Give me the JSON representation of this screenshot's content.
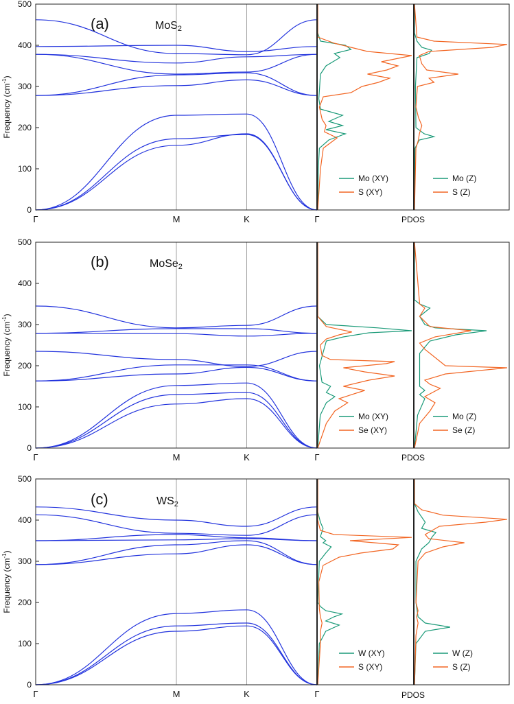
{
  "colors": {
    "band": "#2233dd",
    "metal": "#1a9a78",
    "chalcogen": "#f26522",
    "frame": "#222222",
    "high_symmetry_line": "#888888"
  },
  "common": {
    "ylabel": "Frequency (cm",
    "ylabel_sup": "-1",
    "ylabel_tail": ")",
    "kpoints": [
      "Γ",
      "M",
      "K",
      "Γ"
    ],
    "pdos_label": "PDOS",
    "yticks": [
      0,
      100,
      200,
      300,
      400,
      500
    ]
  },
  "chart_data": [
    {
      "type": "line",
      "panel": "(a)",
      "material": {
        "base": "MoS",
        "sub": "2"
      },
      "ylim": [
        0,
        500
      ],
      "path_coords": [
        0,
        0.5,
        0.75,
        1.0
      ],
      "band_key_values": {
        "acoustic": [
          [
            0,
            173,
            183,
            0
          ],
          [
            0,
            157,
            185,
            0
          ],
          [
            0,
            230,
            233,
            0
          ]
        ],
        "optical": [
          [
            278,
            302,
            316,
            278
          ],
          [
            278,
            328,
            333,
            278
          ],
          [
            378,
            330,
            335,
            378
          ],
          [
            378,
            357,
            372,
            378
          ],
          [
            397,
            400,
            385,
            397
          ],
          [
            462,
            380,
            377,
            462
          ]
        ]
      },
      "legend_left": [
        "Mo (XY)",
        "S (XY)"
      ],
      "legend_right": [
        "Mo (Z)",
        "S (Z)"
      ],
      "pdos_xy": {
        "metal": [
          [
            0,
            0
          ],
          [
            100,
            1
          ],
          [
            150,
            3
          ],
          [
            170,
            20
          ],
          [
            185,
            50
          ],
          [
            195,
            15
          ],
          [
            205,
            45
          ],
          [
            215,
            20
          ],
          [
            230,
            45
          ],
          [
            245,
            5
          ],
          [
            270,
            2
          ],
          [
            330,
            5
          ],
          [
            350,
            15
          ],
          [
            370,
            40
          ],
          [
            380,
            30
          ],
          [
            390,
            60
          ],
          [
            400,
            50
          ],
          [
            410,
            5
          ],
          [
            430,
            0
          ],
          [
            500,
            0
          ]
        ],
        "chalcogen": [
          [
            0,
            0
          ],
          [
            100,
            5
          ],
          [
            150,
            10
          ],
          [
            165,
            25
          ],
          [
            175,
            35
          ],
          [
            190,
            12
          ],
          [
            205,
            15
          ],
          [
            220,
            8
          ],
          [
            250,
            3
          ],
          [
            275,
            10
          ],
          [
            285,
            60
          ],
          [
            300,
            80
          ],
          [
            310,
            110
          ],
          [
            320,
            130
          ],
          [
            330,
            90
          ],
          [
            340,
            125
          ],
          [
            350,
            145
          ],
          [
            360,
            115
          ],
          [
            375,
            170
          ],
          [
            385,
            90
          ],
          [
            395,
            60
          ],
          [
            405,
            30
          ],
          [
            420,
            0
          ],
          [
            500,
            0
          ]
        ]
      },
      "pdos_z": {
        "metal": [
          [
            0,
            0
          ],
          [
            150,
            1
          ],
          [
            170,
            10
          ],
          [
            178,
            40
          ],
          [
            185,
            20
          ],
          [
            200,
            3
          ],
          [
            300,
            2
          ],
          [
            370,
            5
          ],
          [
            380,
            30
          ],
          [
            388,
            35
          ],
          [
            395,
            15
          ],
          [
            410,
            5
          ],
          [
            430,
            0
          ],
          [
            500,
            0
          ]
        ],
        "chalcogen": [
          [
            0,
            0
          ],
          [
            150,
            3
          ],
          [
            170,
            8
          ],
          [
            185,
            10
          ],
          [
            205,
            15
          ],
          [
            225,
            8
          ],
          [
            250,
            3
          ],
          [
            300,
            6
          ],
          [
            310,
            40
          ],
          [
            320,
            30
          ],
          [
            330,
            90
          ],
          [
            340,
            25
          ],
          [
            355,
            15
          ],
          [
            375,
            10
          ],
          [
            385,
            30
          ],
          [
            395,
            160
          ],
          [
            402,
            190
          ],
          [
            410,
            40
          ],
          [
            420,
            5
          ],
          [
            500,
            0
          ]
        ]
      }
    },
    {
      "type": "line",
      "panel": "(b)",
      "material": {
        "base": "MoSe",
        "sub": "2"
      },
      "ylim": [
        0,
        500
      ],
      "path_coords": [
        0,
        0.5,
        0.75,
        1.0
      ],
      "band_key_values": {
        "acoustic": [
          [
            0,
            107,
            120,
            0
          ],
          [
            0,
            130,
            135,
            0
          ],
          [
            0,
            152,
            158,
            0
          ]
        ],
        "optical": [
          [
            163,
            180,
            196,
            163
          ],
          [
            163,
            202,
            202,
            163
          ],
          [
            235,
            215,
            198,
            235
          ],
          [
            279,
            278,
            272,
            279
          ],
          [
            279,
            290,
            290,
            279
          ],
          [
            345,
            292,
            298,
            345
          ]
        ]
      },
      "legend_left": [
        "Mo (XY)",
        "Se (XY)"
      ],
      "legend_right": [
        "Mo (Z)",
        "Se (Z)"
      ],
      "pdos_xy": {
        "metal": [
          [
            0,
            0
          ],
          [
            80,
            3
          ],
          [
            110,
            10
          ],
          [
            125,
            20
          ],
          [
            135,
            10
          ],
          [
            150,
            15
          ],
          [
            160,
            5
          ],
          [
            200,
            2
          ],
          [
            260,
            10
          ],
          [
            270,
            30
          ],
          [
            280,
            60
          ],
          [
            285,
            110
          ],
          [
            292,
            70
          ],
          [
            300,
            10
          ],
          [
            320,
            0
          ],
          [
            500,
            0
          ]
        ],
        "chalcogen": [
          [
            0,
            0
          ],
          [
            60,
            10
          ],
          [
            90,
            20
          ],
          [
            110,
            35
          ],
          [
            120,
            25
          ],
          [
            140,
            55
          ],
          [
            150,
            30
          ],
          [
            165,
            60
          ],
          [
            175,
            90
          ],
          [
            185,
            55
          ],
          [
            195,
            30
          ],
          [
            205,
            80
          ],
          [
            210,
            90
          ],
          [
            215,
            15
          ],
          [
            225,
            5
          ],
          [
            250,
            3
          ],
          [
            265,
            10
          ],
          [
            275,
            25
          ],
          [
            282,
            40
          ],
          [
            295,
            10
          ],
          [
            320,
            0
          ],
          [
            500,
            0
          ]
        ]
      },
      "pdos_z": {
        "metal": [
          [
            0,
            0
          ],
          [
            80,
            3
          ],
          [
            120,
            10
          ],
          [
            130,
            5
          ],
          [
            140,
            10
          ],
          [
            150,
            5
          ],
          [
            230,
            5
          ],
          [
            260,
            15
          ],
          [
            275,
            40
          ],
          [
            285,
            70
          ],
          [
            292,
            20
          ],
          [
            300,
            10
          ],
          [
            320,
            5
          ],
          [
            340,
            15
          ],
          [
            350,
            5
          ],
          [
            360,
            0
          ],
          [
            500,
            0
          ]
        ],
        "chalcogen": [
          [
            0,
            0
          ],
          [
            60,
            5
          ],
          [
            90,
            15
          ],
          [
            110,
            20
          ],
          [
            125,
            10
          ],
          [
            145,
            25
          ],
          [
            155,
            15
          ],
          [
            165,
            10
          ],
          [
            180,
            30
          ],
          [
            195,
            90
          ],
          [
            200,
            30
          ],
          [
            220,
            20
          ],
          [
            240,
            10
          ],
          [
            255,
            5
          ],
          [
            270,
            20
          ],
          [
            285,
            55
          ],
          [
            295,
            15
          ],
          [
            320,
            5
          ],
          [
            340,
            10
          ],
          [
            350,
            5
          ],
          [
            500,
            0
          ]
        ]
      }
    },
    {
      "type": "line",
      "panel": "(c)",
      "material": {
        "base": "WS",
        "sub": "2"
      },
      "ylim": [
        0,
        500
      ],
      "path_coords": [
        0,
        0.5,
        0.75,
        1.0
      ],
      "band_key_values": {
        "acoustic": [
          [
            0,
            130,
            143,
            0
          ],
          [
            0,
            143,
            150,
            0
          ],
          [
            0,
            173,
            182,
            0
          ]
        ],
        "optical": [
          [
            292,
            318,
            340,
            292
          ],
          [
            292,
            340,
            350,
            292
          ],
          [
            350,
            352,
            355,
            350
          ],
          [
            350,
            365,
            357,
            350
          ],
          [
            413,
            368,
            363,
            413
          ],
          [
            432,
            400,
            385,
            432
          ]
        ]
      },
      "legend_left": [
        "W (XY)",
        "S (XY)"
      ],
      "legend_right": [
        "W (Z)",
        "S (Z)"
      ],
      "pdos_xy": {
        "metal": [
          [
            0,
            0
          ],
          [
            100,
            3
          ],
          [
            130,
            15
          ],
          [
            145,
            40
          ],
          [
            155,
            15
          ],
          [
            165,
            30
          ],
          [
            172,
            45
          ],
          [
            180,
            15
          ],
          [
            190,
            5
          ],
          [
            200,
            0
          ],
          [
            300,
            3
          ],
          [
            320,
            15
          ],
          [
            335,
            25
          ],
          [
            345,
            10
          ],
          [
            350,
            15
          ],
          [
            360,
            5
          ],
          [
            380,
            10
          ],
          [
            395,
            5
          ],
          [
            420,
            0
          ],
          [
            500,
            0
          ]
        ],
        "chalcogen": [
          [
            0,
            0
          ],
          [
            100,
            5
          ],
          [
            130,
            5
          ],
          [
            150,
            8
          ],
          [
            165,
            5
          ],
          [
            185,
            3
          ],
          [
            250,
            2
          ],
          [
            290,
            10
          ],
          [
            310,
            40
          ],
          [
            320,
            80
          ],
          [
            330,
            140
          ],
          [
            340,
            150
          ],
          [
            350,
            60
          ],
          [
            358,
            175
          ],
          [
            365,
            30
          ],
          [
            375,
            5
          ],
          [
            400,
            0
          ],
          [
            500,
            0
          ]
        ]
      },
      "pdos_z": {
        "metal": [
          [
            0,
            0
          ],
          [
            100,
            2
          ],
          [
            130,
            15
          ],
          [
            140,
            50
          ],
          [
            150,
            15
          ],
          [
            165,
            5
          ],
          [
            200,
            2
          ],
          [
            300,
            2
          ],
          [
            330,
            10
          ],
          [
            345,
            20
          ],
          [
            360,
            25
          ],
          [
            370,
            30
          ],
          [
            380,
            10
          ],
          [
            395,
            15
          ],
          [
            420,
            5
          ],
          [
            440,
            0
          ],
          [
            500,
            0
          ]
        ],
        "chalcogen": [
          [
            0,
            0
          ],
          [
            120,
            2
          ],
          [
            150,
            5
          ],
          [
            165,
            3
          ],
          [
            180,
            5
          ],
          [
            200,
            2
          ],
          [
            300,
            5
          ],
          [
            320,
            15
          ],
          [
            335,
            40
          ],
          [
            345,
            70
          ],
          [
            355,
            20
          ],
          [
            365,
            15
          ],
          [
            385,
            35
          ],
          [
            395,
            100
          ],
          [
            402,
            130
          ],
          [
            412,
            40
          ],
          [
            425,
            10
          ],
          [
            440,
            0
          ],
          [
            500,
            0
          ]
        ]
      }
    }
  ]
}
